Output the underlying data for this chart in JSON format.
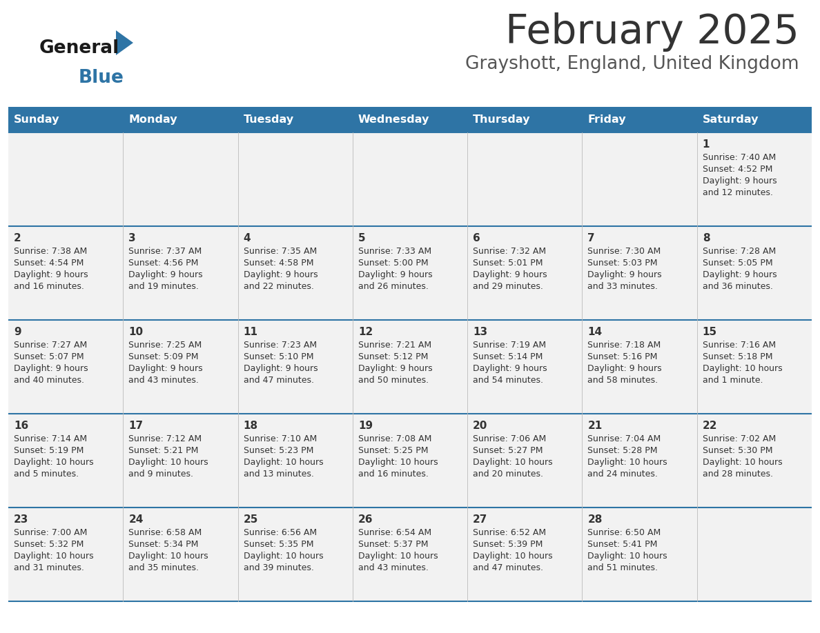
{
  "title": "February 2025",
  "subtitle": "Grayshott, England, United Kingdom",
  "header_bg": "#2E74A5",
  "header_text_color": "#FFFFFF",
  "cell_bg": "#F2F2F2",
  "border_color": "#2E74A5",
  "text_color": "#333333",
  "days_of_week": [
    "Sunday",
    "Monday",
    "Tuesday",
    "Wednesday",
    "Thursday",
    "Friday",
    "Saturday"
  ],
  "calendar": [
    [
      {
        "day": null,
        "sunrise": null,
        "sunset": null,
        "daylight": null
      },
      {
        "day": null,
        "sunrise": null,
        "sunset": null,
        "daylight": null
      },
      {
        "day": null,
        "sunrise": null,
        "sunset": null,
        "daylight": null
      },
      {
        "day": null,
        "sunrise": null,
        "sunset": null,
        "daylight": null
      },
      {
        "day": null,
        "sunrise": null,
        "sunset": null,
        "daylight": null
      },
      {
        "day": null,
        "sunrise": null,
        "sunset": null,
        "daylight": null
      },
      {
        "day": 1,
        "sunrise": "7:40 AM",
        "sunset": "4:52 PM",
        "daylight": "9 hours and 12 minutes."
      }
    ],
    [
      {
        "day": 2,
        "sunrise": "7:38 AM",
        "sunset": "4:54 PM",
        "daylight": "9 hours and 16 minutes."
      },
      {
        "day": 3,
        "sunrise": "7:37 AM",
        "sunset": "4:56 PM",
        "daylight": "9 hours and 19 minutes."
      },
      {
        "day": 4,
        "sunrise": "7:35 AM",
        "sunset": "4:58 PM",
        "daylight": "9 hours and 22 minutes."
      },
      {
        "day": 5,
        "sunrise": "7:33 AM",
        "sunset": "5:00 PM",
        "daylight": "9 hours and 26 minutes."
      },
      {
        "day": 6,
        "sunrise": "7:32 AM",
        "sunset": "5:01 PM",
        "daylight": "9 hours and 29 minutes."
      },
      {
        "day": 7,
        "sunrise": "7:30 AM",
        "sunset": "5:03 PM",
        "daylight": "9 hours and 33 minutes."
      },
      {
        "day": 8,
        "sunrise": "7:28 AM",
        "sunset": "5:05 PM",
        "daylight": "9 hours and 36 minutes."
      }
    ],
    [
      {
        "day": 9,
        "sunrise": "7:27 AM",
        "sunset": "5:07 PM",
        "daylight": "9 hours and 40 minutes."
      },
      {
        "day": 10,
        "sunrise": "7:25 AM",
        "sunset": "5:09 PM",
        "daylight": "9 hours and 43 minutes."
      },
      {
        "day": 11,
        "sunrise": "7:23 AM",
        "sunset": "5:10 PM",
        "daylight": "9 hours and 47 minutes."
      },
      {
        "day": 12,
        "sunrise": "7:21 AM",
        "sunset": "5:12 PM",
        "daylight": "9 hours and 50 minutes."
      },
      {
        "day": 13,
        "sunrise": "7:19 AM",
        "sunset": "5:14 PM",
        "daylight": "9 hours and 54 minutes."
      },
      {
        "day": 14,
        "sunrise": "7:18 AM",
        "sunset": "5:16 PM",
        "daylight": "9 hours and 58 minutes."
      },
      {
        "day": 15,
        "sunrise": "7:16 AM",
        "sunset": "5:18 PM",
        "daylight": "10 hours and 1 minute."
      }
    ],
    [
      {
        "day": 16,
        "sunrise": "7:14 AM",
        "sunset": "5:19 PM",
        "daylight": "10 hours and 5 minutes."
      },
      {
        "day": 17,
        "sunrise": "7:12 AM",
        "sunset": "5:21 PM",
        "daylight": "10 hours and 9 minutes."
      },
      {
        "day": 18,
        "sunrise": "7:10 AM",
        "sunset": "5:23 PM",
        "daylight": "10 hours and 13 minutes."
      },
      {
        "day": 19,
        "sunrise": "7:08 AM",
        "sunset": "5:25 PM",
        "daylight": "10 hours and 16 minutes."
      },
      {
        "day": 20,
        "sunrise": "7:06 AM",
        "sunset": "5:27 PM",
        "daylight": "10 hours and 20 minutes."
      },
      {
        "day": 21,
        "sunrise": "7:04 AM",
        "sunset": "5:28 PM",
        "daylight": "10 hours and 24 minutes."
      },
      {
        "day": 22,
        "sunrise": "7:02 AM",
        "sunset": "5:30 PM",
        "daylight": "10 hours and 28 minutes."
      }
    ],
    [
      {
        "day": 23,
        "sunrise": "7:00 AM",
        "sunset": "5:32 PM",
        "daylight": "10 hours and 31 minutes."
      },
      {
        "day": 24,
        "sunrise": "6:58 AM",
        "sunset": "5:34 PM",
        "daylight": "10 hours and 35 minutes."
      },
      {
        "day": 25,
        "sunrise": "6:56 AM",
        "sunset": "5:35 PM",
        "daylight": "10 hours and 39 minutes."
      },
      {
        "day": 26,
        "sunrise": "6:54 AM",
        "sunset": "5:37 PM",
        "daylight": "10 hours and 43 minutes."
      },
      {
        "day": 27,
        "sunrise": "6:52 AM",
        "sunset": "5:39 PM",
        "daylight": "10 hours and 47 minutes."
      },
      {
        "day": 28,
        "sunrise": "6:50 AM",
        "sunset": "5:41 PM",
        "daylight": "10 hours and 51 minutes."
      },
      {
        "day": null,
        "sunrise": null,
        "sunset": null,
        "daylight": null
      }
    ]
  ],
  "logo_general_color": "#1a1a1a",
  "logo_blue_color": "#2E74A5",
  "logo_triangle_color": "#2E74A5",
  "title_color": "#333333",
  "subtitle_color": "#555555"
}
